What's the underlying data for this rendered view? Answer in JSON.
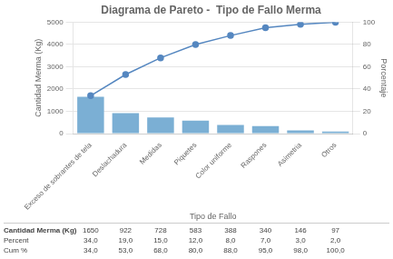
{
  "chart_data": {
    "type": "bar",
    "title": "Diagrama de Pareto -  Tipo de Fallo Merma",
    "categories": [
      "Exceso de sobrantes de tela",
      "Deslachadura",
      "Medidas",
      "Piquetes",
      "Color uniforme",
      "Raspones",
      "Asimetria",
      "Otros"
    ],
    "x_label": "Tipo de Fallo",
    "y_label": "Cantidad Merma (Kg)",
    "y2_label": "Porcentaje",
    "series": [
      {
        "type": "bar",
        "color": "#7bafd4",
        "values": [
          1650,
          922,
          728,
          583,
          388,
          340,
          146,
          97
        ]
      },
      {
        "type": "line",
        "axis": "y2",
        "color": "#5587c0",
        "marker": "circle",
        "line_style": "solid",
        "values": [
          34.0,
          53.0,
          68.0,
          80.0,
          88.0,
          95.0,
          98.0,
          100.0
        ]
      }
    ],
    "ylim": [
      0,
      5000
    ],
    "yticks": [
      0,
      1000,
      2000,
      3000,
      4000,
      5000
    ],
    "y2lim": [
      0,
      100
    ],
    "y2ticks": [
      0,
      20,
      40,
      60,
      80,
      100
    ],
    "grid": true,
    "table": [
      {
        "name": "Cantidad Merma (Kg)",
        "values": [
          1650,
          922,
          728,
          583,
          388,
          340,
          146,
          97
        ]
      },
      {
        "name": "Percent",
        "values": [
          34.0,
          19.0,
          15.0,
          12.0,
          8.0,
          7.0,
          3.0,
          2.0
        ],
        "value_labels": [
          "34,0",
          "19,0",
          "15,0",
          "12,0",
          "8,0",
          "7,0",
          "3,0",
          "2,0"
        ]
      },
      {
        "name": "Cum %",
        "values": [
          34.0,
          53.0,
          68.0,
          80.0,
          88.0,
          95.0,
          98.0,
          100.0
        ],
        "value_labels": [
          "34,0",
          "53,0",
          "68,0",
          "80,0",
          "88,0",
          "95,0",
          "98,0",
          "100,0"
        ]
      }
    ]
  }
}
